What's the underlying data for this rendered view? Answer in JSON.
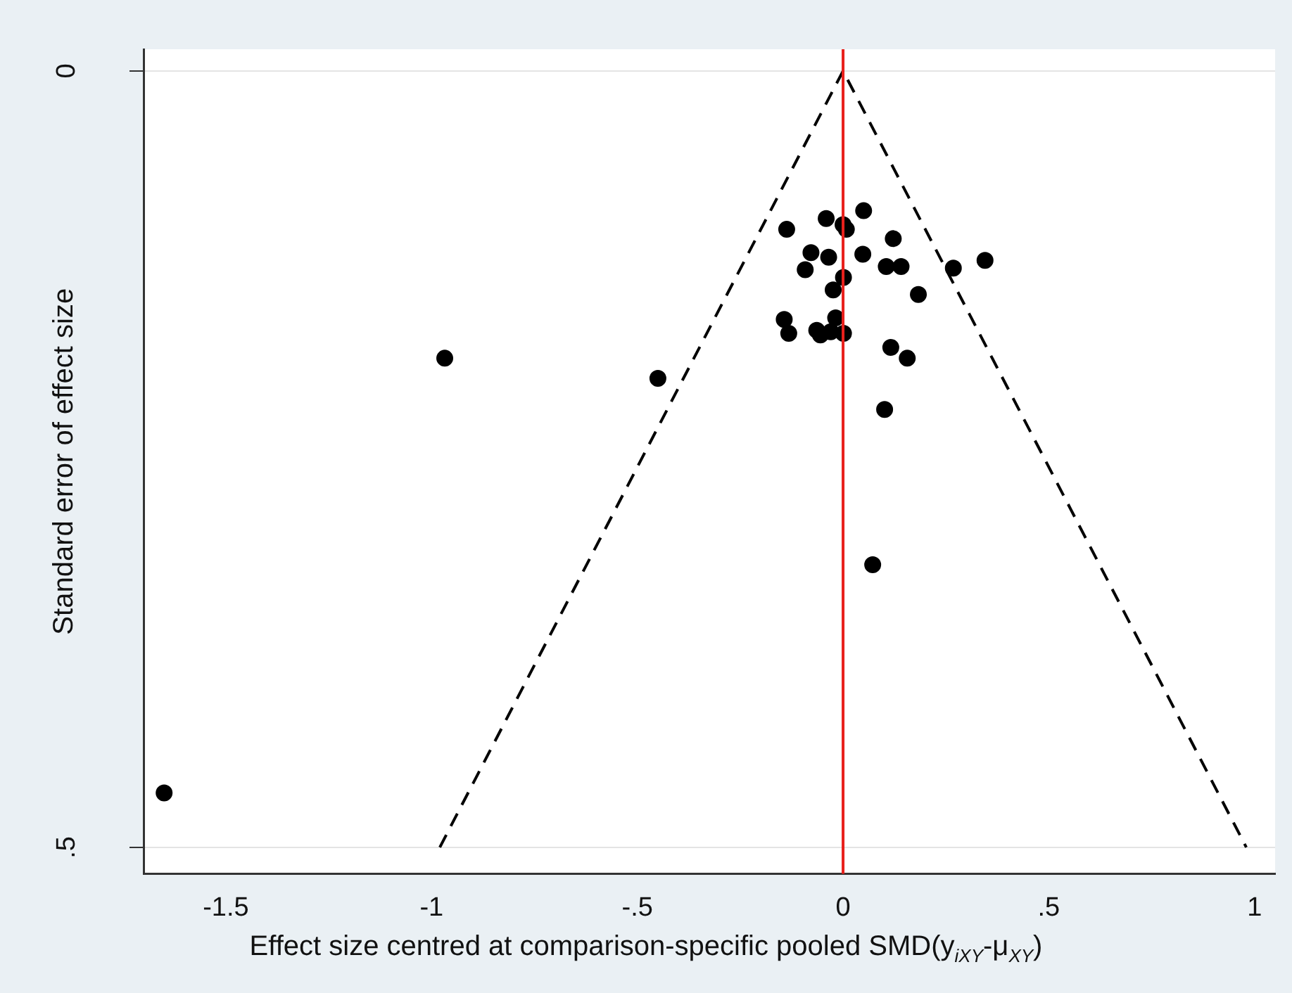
{
  "chart_data": {
    "type": "scatter",
    "xlabel": "Effect size centred at comparison-specific pooled SMD(y$_{iXY}$-μ$_{XY}$)",
    "ylabel": "Standard error of effect size",
    "xlim": [
      -1.7,
      1.05
    ],
    "xticks": [
      -1.5,
      -1,
      {
        "value": -0.5,
        "label": "-.5"
      },
      0,
      {
        "value": 0.5,
        "label": ".5"
      },
      1
    ],
    "ylim": [
      0.517,
      -0.014
    ],
    "yticks": [
      0,
      {
        "value": 0.5,
        "label": ".5"
      }
    ],
    "grid": "y",
    "marker": "circle",
    "ref_lines": [
      {
        "axis": "x",
        "value": 0,
        "color": "#e8201c"
      }
    ],
    "series": [
      {
        "type": "scatter",
        "color": "#000000",
        "x": [
          -1.65,
          -0.968,
          -0.45,
          0.072,
          0.05,
          -0.041,
          -0.137,
          0,
          0.008,
          0.122,
          -0.078,
          -0.035,
          0.048,
          -0.092,
          0.105,
          0.141,
          0.268,
          0.345,
          0.001,
          -0.024,
          0.183,
          -0.143,
          -0.132,
          -0.064,
          -0.055,
          -0.018,
          -0.03,
          0.001,
          0.116,
          0.156,
          0.101
        ],
        "values": [
          0.465,
          0.185,
          0.198,
          0.318,
          0.09,
          0.095,
          0.102,
          0.099,
          0.102,
          0.108,
          0.117,
          0.12,
          0.118,
          0.128,
          0.126,
          0.126,
          0.127,
          0.122,
          0.133,
          0.141,
          0.144,
          0.16,
          0.169,
          0.167,
          0.17,
          0.159,
          0.168,
          0.169,
          0.178,
          0.185,
          0.218
        ]
      },
      {
        "type": "line",
        "color": "#000000",
        "line_style": "dashed",
        "marker": "none",
        "x": [
          -0.98,
          0,
          0.98
        ],
        "values": [
          0.5,
          0,
          0.5
        ]
      }
    ]
  }
}
